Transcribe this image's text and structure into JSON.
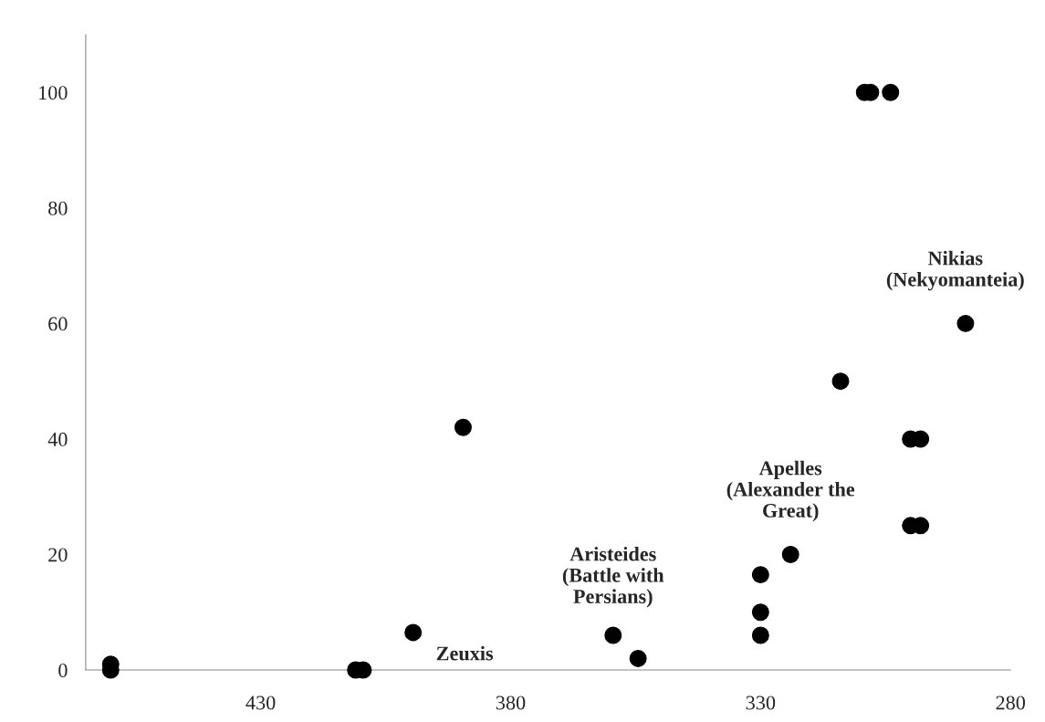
{
  "chart_data": {
    "type": "scatter",
    "x": [
      460,
      460,
      411,
      409.5,
      399.5,
      389.5,
      359.5,
      354.5,
      330,
      330,
      330,
      324,
      314,
      300,
      298,
      300,
      298,
      289,
      309.2,
      308,
      304
    ],
    "values": [
      0,
      1,
      0,
      0,
      6.5,
      42,
      6,
      2,
      16.5,
      10,
      6,
      20,
      50,
      40,
      40,
      25,
      25,
      60,
      100,
      100,
      100
    ],
    "color": "#000000",
    "marker": "circle",
    "grid": false,
    "legend": false,
    "xlim": [
      465,
      280
    ],
    "xticks": [
      430,
      380,
      330,
      280
    ],
    "ylim": [
      0,
      110
    ],
    "yticks": [
      0,
      20,
      40,
      60,
      80,
      100
    ],
    "annotations": [
      {
        "text": "Zeuxis",
        "x": 399.5,
        "y": 6.5
      },
      {
        "text": "Aristeides\n(Battle with\nPersians)",
        "x": 359.5,
        "y": 6
      },
      {
        "text": "Apelles\n(Alexander the\nGreat)",
        "x": 324,
        "y": 20
      },
      {
        "text": "Nikias\n(Nekyomanteia)",
        "x": 289,
        "y": 60
      }
    ]
  }
}
